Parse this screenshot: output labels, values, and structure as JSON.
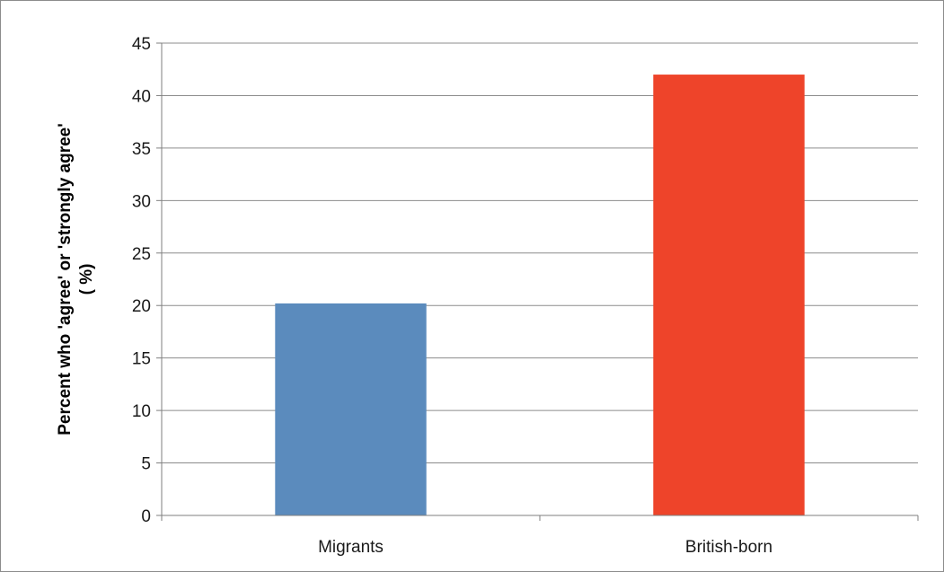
{
  "chart_data": {
    "type": "bar",
    "categories": [
      "Migrants",
      "British-born"
    ],
    "values": [
      20.2,
      42.0
    ],
    "colors": [
      "#5b8bbd",
      "#ee442a"
    ],
    "title": "",
    "xlabel": "",
    "ylabel": "Percent who 'agree' or 'strongly agree'",
    "ylabel_line2": "( %)",
    "ylim": [
      0,
      45
    ],
    "yticks": [
      0,
      5,
      10,
      15,
      20,
      25,
      30,
      35,
      40,
      45
    ],
    "grid": true,
    "legend": "none"
  }
}
